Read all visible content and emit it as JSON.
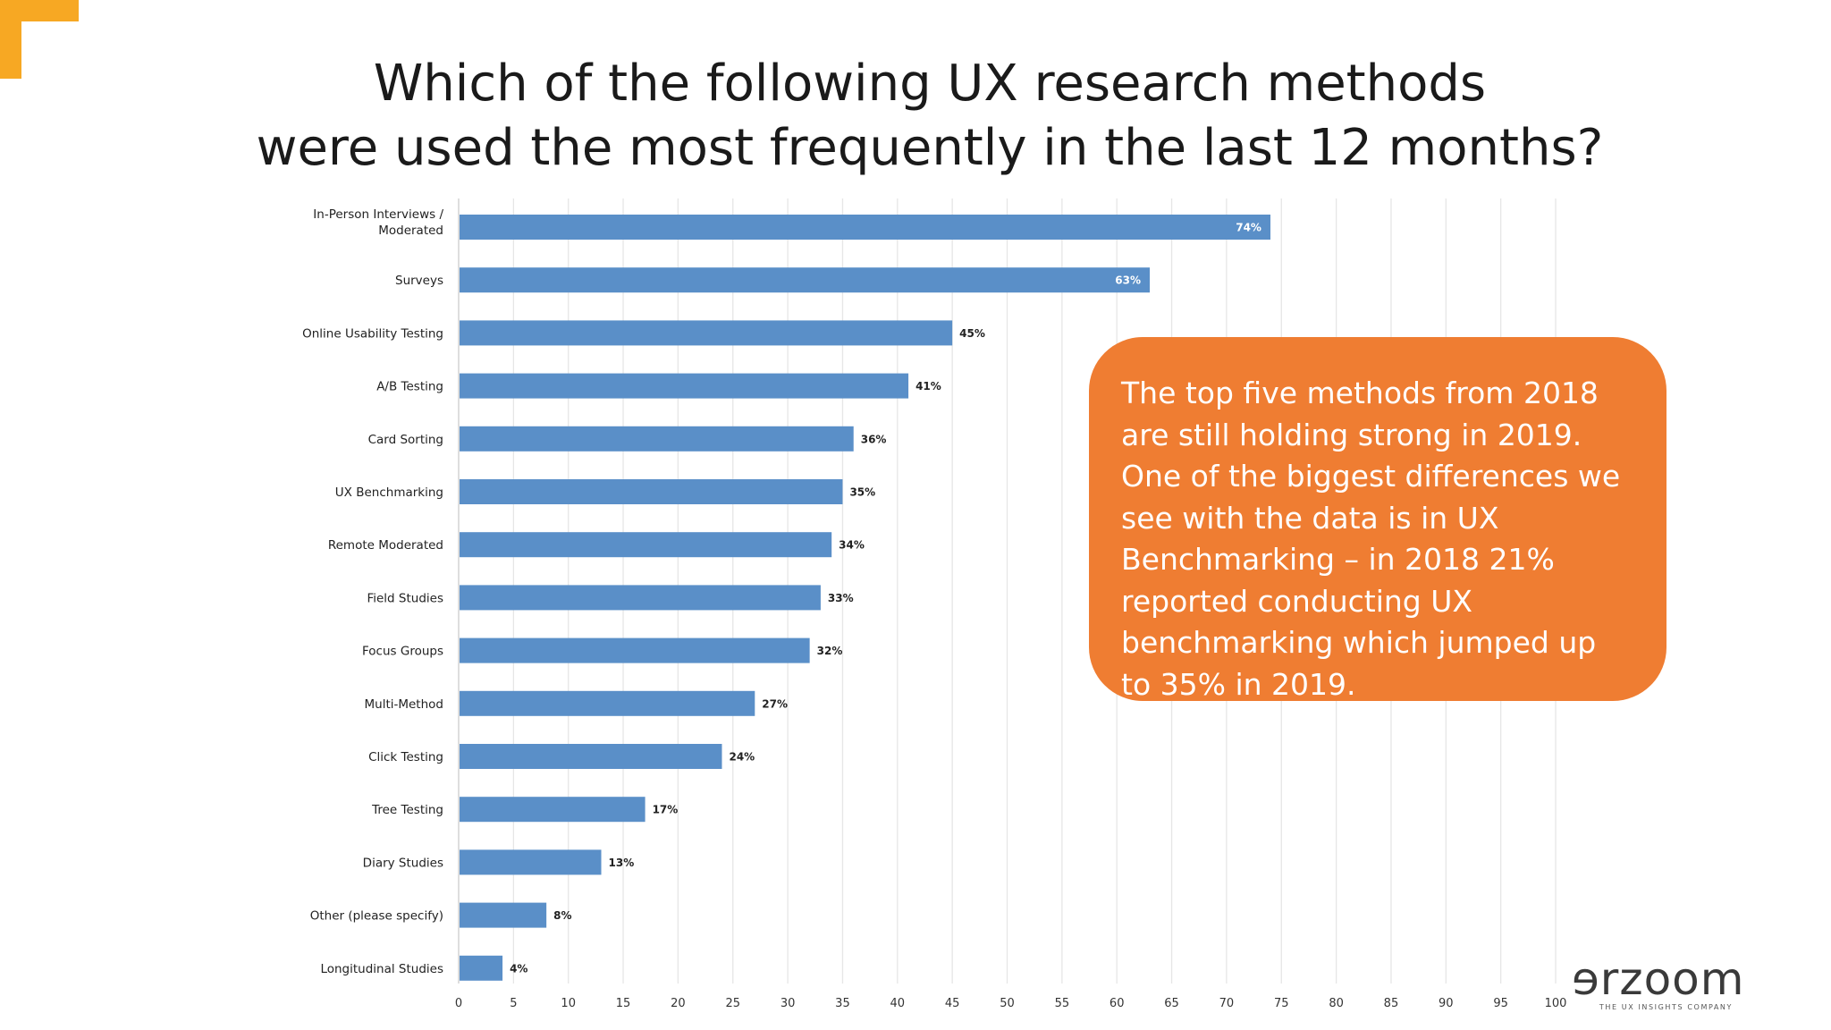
{
  "slide": {
    "title_lines": [
      "Which of the following UX research methods",
      "were used the most frequently in the last 12 months?"
    ],
    "callout_text": "The top five methods from 2018 are still holding strong in 2019. One of the biggest differences we see with the data is in UX Benchmarking – in 2018 21% reported conducting UX benchmarking which jumped up to 35% in 2019.",
    "logo": {
      "wordmark": "ɘrzoom",
      "tagline": "THE UX INSIGHTS COMPANY"
    }
  },
  "colors": {
    "bar": "#5a8fc8",
    "callout": "#ef7d32",
    "corner_accent": "#f7a823"
  },
  "chart_data": {
    "type": "bar",
    "orientation": "horizontal",
    "categories": [
      "In-Person Interviews / Moderated",
      "Surveys",
      "Online Usability Testing",
      "A/B Testing",
      "Card Sorting",
      "UX Benchmarking",
      "Remote Moderated",
      "Field Studies",
      "Focus Groups",
      "Multi-Method",
      "Click Testing",
      "Tree Testing",
      "Diary Studies",
      "Other (please specify)",
      "Longitudinal Studies"
    ],
    "values": [
      74,
      63,
      45,
      41,
      36,
      35,
      34,
      33,
      32,
      27,
      24,
      17,
      13,
      8,
      4
    ],
    "data_labels": [
      "74%",
      "63%",
      "45%",
      "41%",
      "36%",
      "35%",
      "34%",
      "33%",
      "32%",
      "27%",
      "24%",
      "17%",
      "13%",
      "8%",
      "4%"
    ],
    "xlim": [
      0,
      100
    ],
    "x_ticks": [
      0,
      5,
      10,
      15,
      20,
      25,
      30,
      35,
      40,
      45,
      50,
      55,
      60,
      65,
      70,
      75,
      80,
      85,
      90,
      95,
      100
    ],
    "grid": true,
    "legend": "none"
  }
}
